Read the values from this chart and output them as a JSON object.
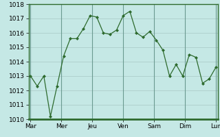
{
  "x_labels": [
    "Mar",
    "Mer",
    "Jeu",
    "Ven",
    "Sam",
    "Dim",
    "Lun"
  ],
  "y_values": [
    1013,
    1012.3,
    1013,
    1010.2,
    1012.3,
    1014.4,
    1015.6,
    1015.6,
    1016.3,
    1017.2,
    1017.1,
    1016,
    1015.9,
    1016.2,
    1017.2,
    1017.5,
    1016,
    1015.7,
    1016.1,
    1015.5,
    1014.8,
    1013,
    1013.8,
    1013,
    1014.5,
    1014.3,
    1012.5,
    1012.8,
    1013.6
  ],
  "ylim": [
    1010,
    1018
  ],
  "yticks": [
    1010,
    1011,
    1012,
    1013,
    1014,
    1015,
    1016,
    1017,
    1018
  ],
  "line_color": "#2d6a2d",
  "marker": "D",
  "marker_size": 2.0,
  "bg_color": "#c5e8e5",
  "grid_color": "#a8c8c5",
  "axis_bar_color": "#2d6a2d",
  "tick_label_fontsize": 6.5
}
